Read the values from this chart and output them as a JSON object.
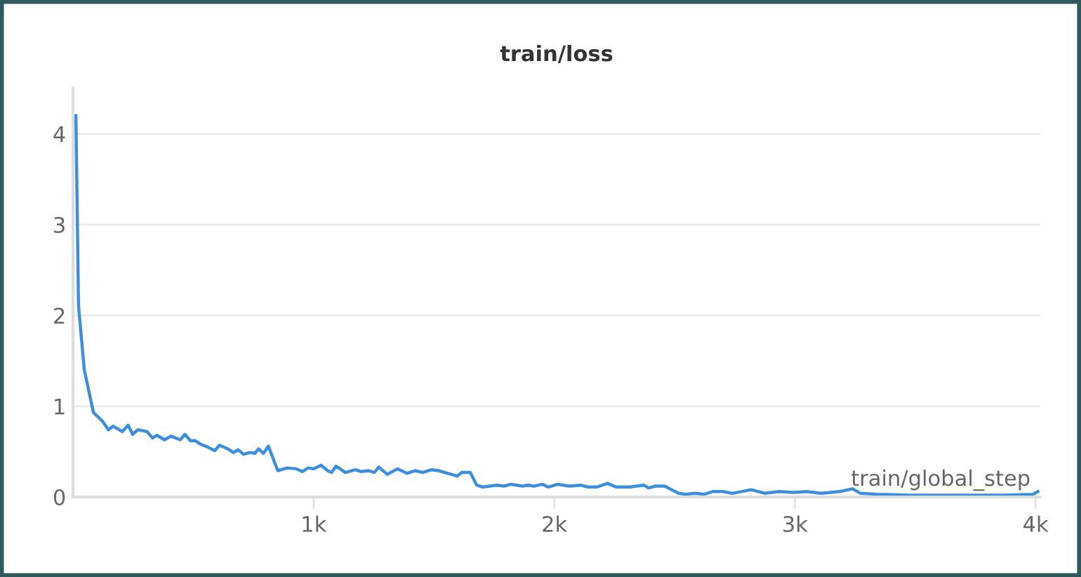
{
  "chart_data": {
    "type": "line",
    "title": "train/loss",
    "xlabel": "train/global_step",
    "x": [
      12,
      23,
      47,
      85,
      124,
      147,
      167,
      205,
      229,
      248,
      270,
      308,
      330,
      349,
      380,
      407,
      446,
      465,
      488,
      508,
      531,
      560,
      589,
      609,
      643,
      667,
      686,
      709,
      736,
      756,
      771,
      791,
      812,
      851,
      890,
      928,
      953,
      977,
      999,
      1031,
      1058,
      1074,
      1093,
      1132,
      1174,
      1198,
      1229,
      1252,
      1271,
      1306,
      1349,
      1388,
      1422,
      1453,
      1490,
      1519,
      1558,
      1597,
      1616,
      1651,
      1678,
      1703,
      1733,
      1762,
      1791,
      1820,
      1868,
      1891,
      1916,
      1950,
      1975,
      2014,
      2062,
      2110,
      2140,
      2178,
      2221,
      2256,
      2314,
      2372,
      2392,
      2421,
      2459,
      2488,
      2517,
      2547,
      2585,
      2624,
      2659,
      2702,
      2740,
      2818,
      2876,
      2934,
      2992,
      3050,
      3109,
      3186,
      3240,
      3273,
      3341,
      3477,
      3671,
      3864,
      3990,
      4010
    ],
    "series": [
      {
        "color": "#3d8fdd",
        "values": [
          4.2,
          2.1,
          1.4,
          0.93,
          0.83,
          0.74,
          0.78,
          0.72,
          0.79,
          0.69,
          0.74,
          0.72,
          0.65,
          0.68,
          0.63,
          0.67,
          0.63,
          0.69,
          0.62,
          0.62,
          0.58,
          0.55,
          0.51,
          0.57,
          0.53,
          0.49,
          0.52,
          0.47,
          0.49,
          0.48,
          0.53,
          0.48,
          0.56,
          0.29,
          0.32,
          0.31,
          0.28,
          0.32,
          0.31,
          0.35,
          0.29,
          0.27,
          0.34,
          0.27,
          0.3,
          0.28,
          0.29,
          0.27,
          0.33,
          0.25,
          0.31,
          0.26,
          0.29,
          0.27,
          0.3,
          0.29,
          0.26,
          0.23,
          0.27,
          0.27,
          0.13,
          0.11,
          0.12,
          0.13,
          0.12,
          0.14,
          0.12,
          0.13,
          0.12,
          0.14,
          0.11,
          0.14,
          0.12,
          0.13,
          0.11,
          0.11,
          0.15,
          0.11,
          0.11,
          0.13,
          0.1,
          0.12,
          0.12,
          0.08,
          0.04,
          0.03,
          0.04,
          0.03,
          0.06,
          0.06,
          0.04,
          0.08,
          0.04,
          0.06,
          0.05,
          0.06,
          0.04,
          0.06,
          0.09,
          0.04,
          0.03,
          0.02,
          0.02,
          0.02,
          0.03,
          0.06
        ]
      }
    ],
    "xlim": [
      0,
      4020
    ],
    "ylim": [
      0,
      4.5
    ],
    "xticks": [
      {
        "value": 1000,
        "label": "1k"
      },
      {
        "value": 2000,
        "label": "2k"
      },
      {
        "value": 3000,
        "label": "3k"
      },
      {
        "value": 4000,
        "label": "4k"
      }
    ],
    "yticks": [
      0,
      1,
      2,
      3,
      4
    ],
    "grid": "y",
    "legend": false,
    "marker": "none",
    "line_style": "solid"
  }
}
